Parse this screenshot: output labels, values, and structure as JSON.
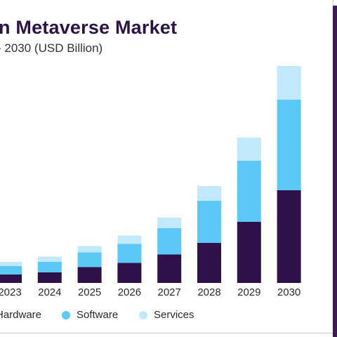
{
  "header": {
    "title": "n Metaverse Market",
    "subtitle": "- 2030 (USD Billion)"
  },
  "colors": {
    "hardware": "#2e1148",
    "software": "#5bc8f5",
    "services": "#c2e8fb",
    "title": "#2c1347"
  },
  "chart_data": {
    "type": "bar",
    "stacked": true,
    "categories": [
      "2023",
      "2024",
      "2025",
      "2026",
      "2027",
      "2028",
      "2029",
      "2030"
    ],
    "series": [
      {
        "name": "Hardware",
        "values": [
          4,
          5,
          7.5,
          9.5,
          13.5,
          19,
          29,
          44
        ]
      },
      {
        "name": "Software",
        "values": [
          4,
          5,
          7,
          9,
          12.5,
          20,
          29,
          43
        ]
      },
      {
        "name": "Services",
        "values": [
          2,
          2.5,
          3,
          4,
          5,
          7,
          11,
          16
        ]
      }
    ],
    "ylim": [
      0,
      105
    ],
    "grid": false,
    "legend_position": "bottom"
  }
}
